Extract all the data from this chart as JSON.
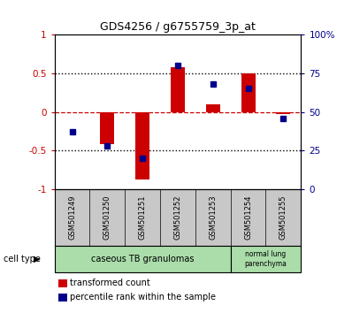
{
  "title": "GDS4256 / g6755759_3p_at",
  "samples": [
    "GSM501249",
    "GSM501250",
    "GSM501251",
    "GSM501252",
    "GSM501253",
    "GSM501254",
    "GSM501255"
  ],
  "red_bars": [
    0.0,
    -0.42,
    -0.87,
    0.58,
    0.1,
    0.5,
    -0.03
  ],
  "blue_squares_pct": [
    37,
    28,
    20,
    80,
    68,
    65,
    46
  ],
  "ylim": [
    -1.0,
    1.0
  ],
  "yticks": [
    -1.0,
    -0.5,
    0.0,
    0.5,
    1.0
  ],
  "ytick_labels": [
    "-1",
    "-0.5",
    "0",
    "0.5",
    "1"
  ],
  "right_yticks": [
    0,
    25,
    50,
    75,
    100
  ],
  "right_ylabels": [
    "0",
    "25",
    "50",
    "75",
    "100%"
  ],
  "bar_color": "#CC0000",
  "square_color": "#00008B",
  "background_color": "#ffffff",
  "plot_bg": "#ffffff",
  "tick_bg": "#c8c8c8",
  "cell_color": "#aaddaa",
  "legend_red": "transformed count",
  "legend_blue": "percentile rank within the sample",
  "cell_type_label": "cell type",
  "hline_color": "#CC0000",
  "dotted_line_color": "#000000",
  "caseous_label": "caseous TB granulomas",
  "normal_label": "normal lung\nparenchyma"
}
